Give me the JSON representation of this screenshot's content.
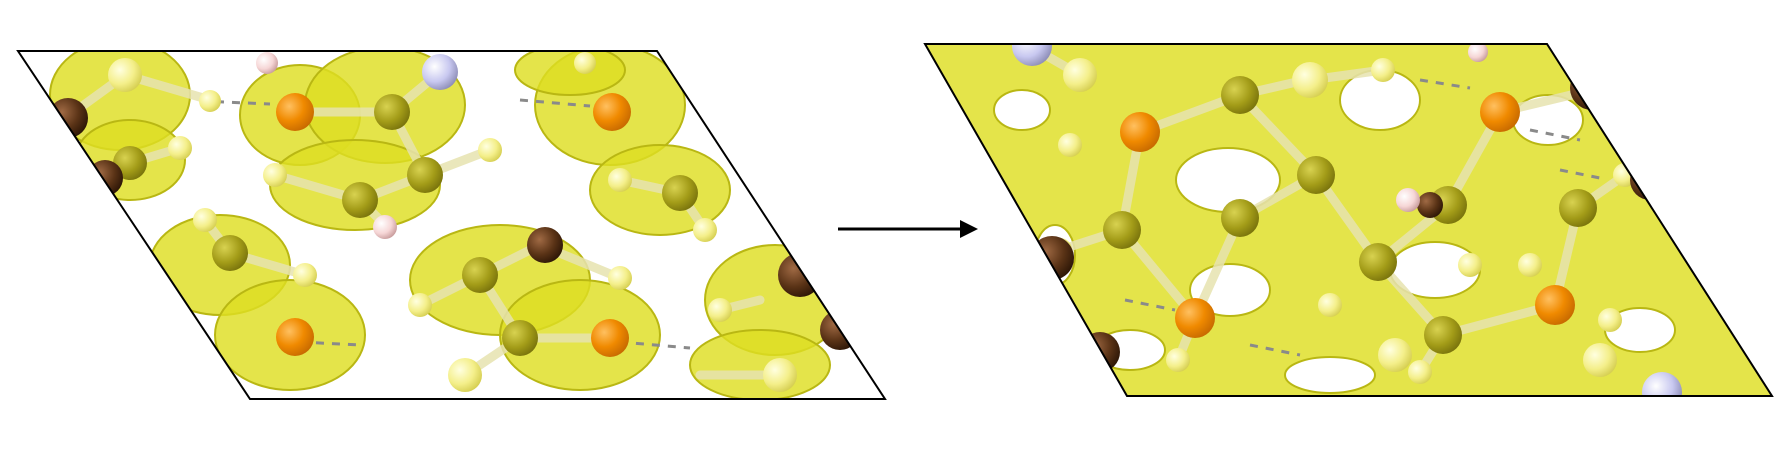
{
  "figure": {
    "description_free": true,
    "panels": [
      {
        "id": "before",
        "shape": "parallelogram-cell"
      },
      {
        "id": "after",
        "shape": "parallelogram-cell"
      }
    ],
    "transition": {
      "icon": "right-arrow-icon"
    }
  },
  "colors": {
    "background": "#ffffff",
    "cell_edge": "#000000",
    "isosurface": "#dede22",
    "isosurface_edge": "#b9b713",
    "isosurface_highlight": "#f2f27a",
    "oxygen": "#f08a00",
    "carbon": "#8f8a10",
    "hydrogen": "#f7f49a",
    "metal_brown": "#5a3316",
    "metal_light": "#c8c8ff",
    "pink_atom": "#f6d6d6",
    "bond": "#c7c3a0",
    "dash": "#8a8a8a"
  }
}
